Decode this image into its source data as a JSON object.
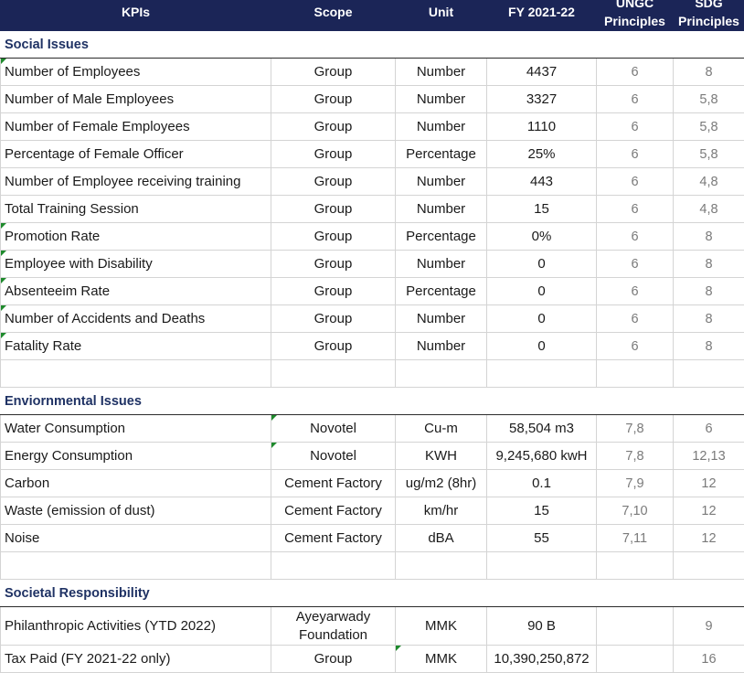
{
  "header": {
    "kpi": "KPIs",
    "scope": "Scope",
    "unit": "Unit",
    "fy": "FY 2021-22",
    "ungc_top": "UNGC",
    "ungc_bottom": "Principles",
    "sdg_top": "SDG",
    "sdg_bottom": "Principles"
  },
  "sections": {
    "social": {
      "title": "Social Issues",
      "rows": [
        {
          "kpi": "Number of Employees",
          "scope": "Group",
          "unit": "Number",
          "value": "4437",
          "ungc": "6",
          "sdg": "8"
        },
        {
          "kpi": "Number of Male Employees",
          "scope": "Group",
          "unit": "Number",
          "value": "3327",
          "ungc": "6",
          "sdg": "5,8"
        },
        {
          "kpi": "Number of Female Employees",
          "scope": "Group",
          "unit": "Number",
          "value": "1110",
          "ungc": "6",
          "sdg": "5,8"
        },
        {
          "kpi": "Percentage of Female Officer",
          "scope": "Group",
          "unit": "Percentage",
          "value": "25%",
          "ungc": "6",
          "sdg": "5,8"
        },
        {
          "kpi": "Number of Employee receiving training",
          "scope": "Group",
          "unit": "Number",
          "value": "443",
          "ungc": "6",
          "sdg": "4,8"
        },
        {
          "kpi": "Total Training Session",
          "scope": "Group",
          "unit": "Number",
          "value": "15",
          "ungc": "6",
          "sdg": "4,8"
        },
        {
          "kpi": "Promotion Rate",
          "scope": "Group",
          "unit": "Percentage",
          "value": "0%",
          "ungc": "6",
          "sdg": "8"
        },
        {
          "kpi": "Employee with Disability",
          "scope": "Group",
          "unit": "Number",
          "value": "0",
          "ungc": "6",
          "sdg": "8"
        },
        {
          "kpi": "Absenteeim Rate",
          "scope": "Group",
          "unit": "Percentage",
          "value": "0",
          "ungc": "6",
          "sdg": "8"
        },
        {
          "kpi": "Number of Accidents and Deaths",
          "scope": "Group",
          "unit": "Number",
          "value": "0",
          "ungc": "6",
          "sdg": "8"
        },
        {
          "kpi": "Fatality Rate",
          "scope": "Group",
          "unit": "Number",
          "value": "0",
          "ungc": "6",
          "sdg": "8"
        }
      ]
    },
    "env": {
      "title": "Enviornmental Issues",
      "rows": [
        {
          "kpi": "Water Consumption",
          "scope": "Novotel",
          "unit": "Cu-m",
          "value": "58,504 m3",
          "ungc": "7,8",
          "sdg": "6"
        },
        {
          "kpi": "Energy Consumption",
          "scope": "Novotel",
          "unit": "KWH",
          "value": "9,245,680 kwH",
          "ungc": "7,8",
          "sdg": "12,13"
        },
        {
          "kpi": "Carbon",
          "scope": "Cement Factory",
          "unit": "ug/m2 (8hr)",
          "value": "0.1",
          "ungc": "7,9",
          "sdg": "12"
        },
        {
          "kpi": "Waste (emission of dust)",
          "scope": "Cement Factory",
          "unit": "km/hr",
          "value": "15",
          "ungc": "7,10",
          "sdg": "12"
        },
        {
          "kpi": "Noise",
          "scope": "Cement Factory",
          "unit": "dBA",
          "value": "55",
          "ungc": "7,11",
          "sdg": "12"
        }
      ]
    },
    "societal": {
      "title": "Societal Responsibility",
      "rows": [
        {
          "kpi": "Philanthropic Activities (YTD 2022)",
          "scope_line1": "Ayeyarwady",
          "scope_line2": "Foundation",
          "unit": "MMK",
          "value": "90 B",
          "ungc": "",
          "sdg": "9"
        },
        {
          "kpi": "Tax Paid (FY 2021-22 only)",
          "scope": "Group",
          "unit": "MMK",
          "value": "10,390,250,872",
          "ungc": "",
          "sdg": "16"
        }
      ]
    }
  }
}
